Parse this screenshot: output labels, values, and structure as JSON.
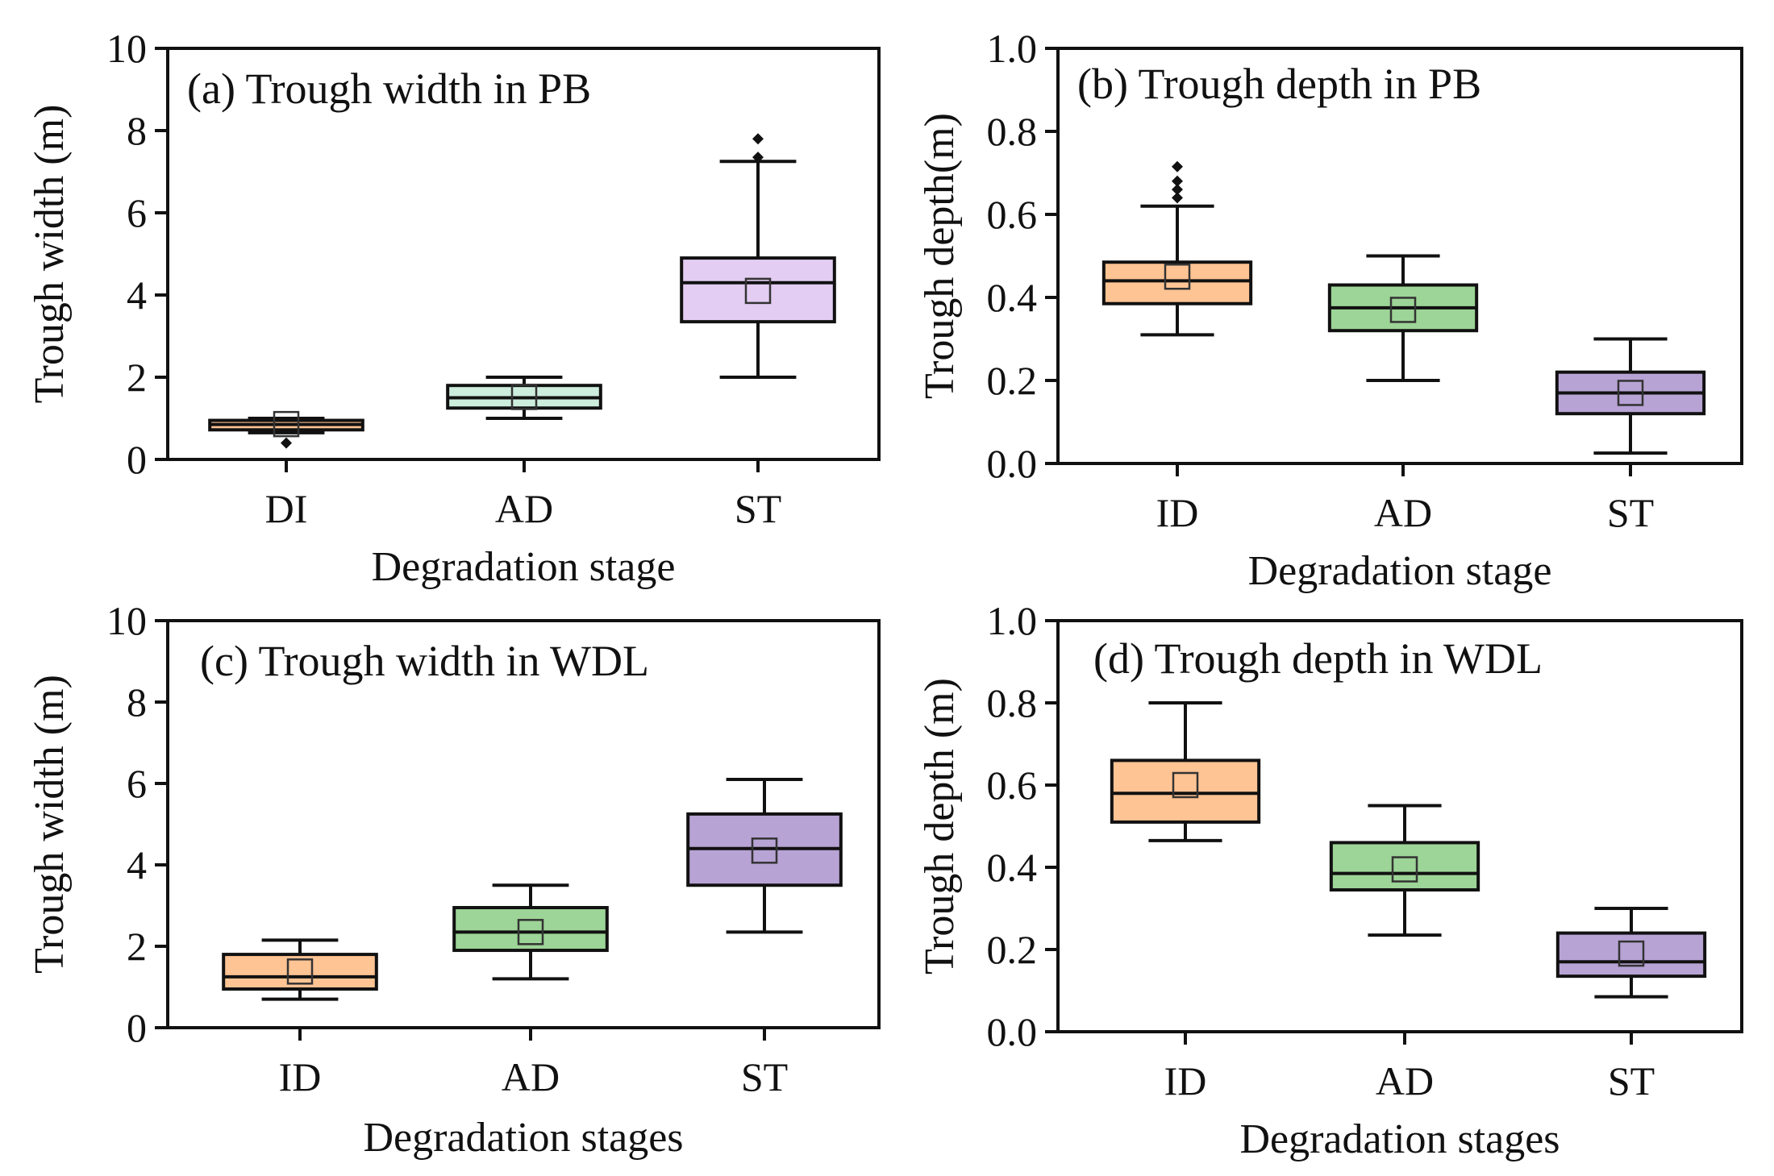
{
  "chart_data": [
    {
      "type": "box",
      "title": "(a) Trough width in PB",
      "xlabel": "Degradation stage",
      "ylabel": "Trough width (m)",
      "ylim": [
        0,
        10
      ],
      "yticks": [
        "0",
        "2",
        "4",
        "6",
        "8",
        "10"
      ],
      "categories": [
        "DI",
        "AD",
        "ST"
      ],
      "boxes": [
        {
          "whisker_low": 0.65,
          "q1": 0.72,
          "median": 0.85,
          "q3": 0.95,
          "whisker_high": 1.0,
          "mean": 0.86,
          "outliers": [
            0.4
          ],
          "color": "#ffc494"
        },
        {
          "whisker_low": 1.0,
          "q1": 1.25,
          "median": 1.5,
          "q3": 1.8,
          "whisker_high": 2.0,
          "mean": 1.52,
          "outliers": [],
          "color": "#cdeedd"
        },
        {
          "whisker_low": 2.0,
          "q1": 3.35,
          "median": 4.3,
          "q3": 4.9,
          "whisker_high": 7.25,
          "mean": 4.1,
          "outliers": [
            7.35,
            7.8
          ],
          "color": "#e3cdf2"
        }
      ]
    },
    {
      "type": "box",
      "title": "(b) Trough depth in PB",
      "xlabel": "Degradation stage",
      "ylabel": "Trough depth(m)",
      "ylim": [
        0,
        1.0
      ],
      "yticks": [
        "0.0",
        "0.2",
        "0.4",
        "0.6",
        "0.8",
        "1.0"
      ],
      "categories": [
        "ID",
        "AD",
        "ST"
      ],
      "boxes": [
        {
          "whisker_low": 0.31,
          "q1": 0.385,
          "median": 0.44,
          "q3": 0.485,
          "whisker_high": 0.62,
          "mean": 0.45,
          "outliers": [
            0.64,
            0.66,
            0.68,
            0.715
          ],
          "color": "#ffc494"
        },
        {
          "whisker_low": 0.2,
          "q1": 0.32,
          "median": 0.375,
          "q3": 0.43,
          "whisker_high": 0.5,
          "mean": 0.37,
          "outliers": [],
          "color": "#9dd497"
        },
        {
          "whisker_low": 0.025,
          "q1": 0.12,
          "median": 0.17,
          "q3": 0.22,
          "whisker_high": 0.3,
          "mean": 0.17,
          "outliers": [],
          "color": "#b8a3d5"
        }
      ]
    },
    {
      "type": "box",
      "title": "(c) Trough width in WDL",
      "xlabel": "Degradation stages",
      "ylabel": "Trough width (m)",
      "ylim": [
        0,
        10
      ],
      "yticks": [
        "0",
        "2",
        "4",
        "6",
        "8",
        "10"
      ],
      "categories": [
        "ID",
        "AD",
        "ST"
      ],
      "boxes": [
        {
          "whisker_low": 0.7,
          "q1": 0.95,
          "median": 1.25,
          "q3": 1.8,
          "whisker_high": 2.15,
          "mean": 1.38,
          "outliers": [],
          "color": "#ffc494"
        },
        {
          "whisker_low": 1.2,
          "q1": 1.9,
          "median": 2.35,
          "q3": 2.95,
          "whisker_high": 3.5,
          "mean": 2.35,
          "outliers": [],
          "color": "#9dd497"
        },
        {
          "whisker_low": 2.35,
          "q1": 3.5,
          "median": 4.4,
          "q3": 5.25,
          "whisker_high": 6.1,
          "mean": 4.35,
          "outliers": [],
          "color": "#b8a3d5"
        }
      ]
    },
    {
      "type": "box",
      "title": "(d) Trough depth in WDL",
      "xlabel": "Degradation stages",
      "ylabel": "Trough depth (m)",
      "ylim": [
        0,
        1.0
      ],
      "yticks": [
        "0.0",
        "0.2",
        "0.4",
        "0.6",
        "0.8",
        "1.0"
      ],
      "categories": [
        "ID",
        "AD",
        "ST"
      ],
      "boxes": [
        {
          "whisker_low": 0.465,
          "q1": 0.51,
          "median": 0.58,
          "q3": 0.66,
          "whisker_high": 0.8,
          "mean": 0.6,
          "outliers": [],
          "color": "#ffc494"
        },
        {
          "whisker_low": 0.235,
          "q1": 0.345,
          "median": 0.385,
          "q3": 0.46,
          "whisker_high": 0.55,
          "mean": 0.395,
          "outliers": [],
          "color": "#9dd497"
        },
        {
          "whisker_low": 0.085,
          "q1": 0.135,
          "median": 0.17,
          "q3": 0.24,
          "whisker_high": 0.3,
          "mean": 0.19,
          "outliers": [],
          "color": "#b8a3d5"
        }
      ]
    }
  ]
}
